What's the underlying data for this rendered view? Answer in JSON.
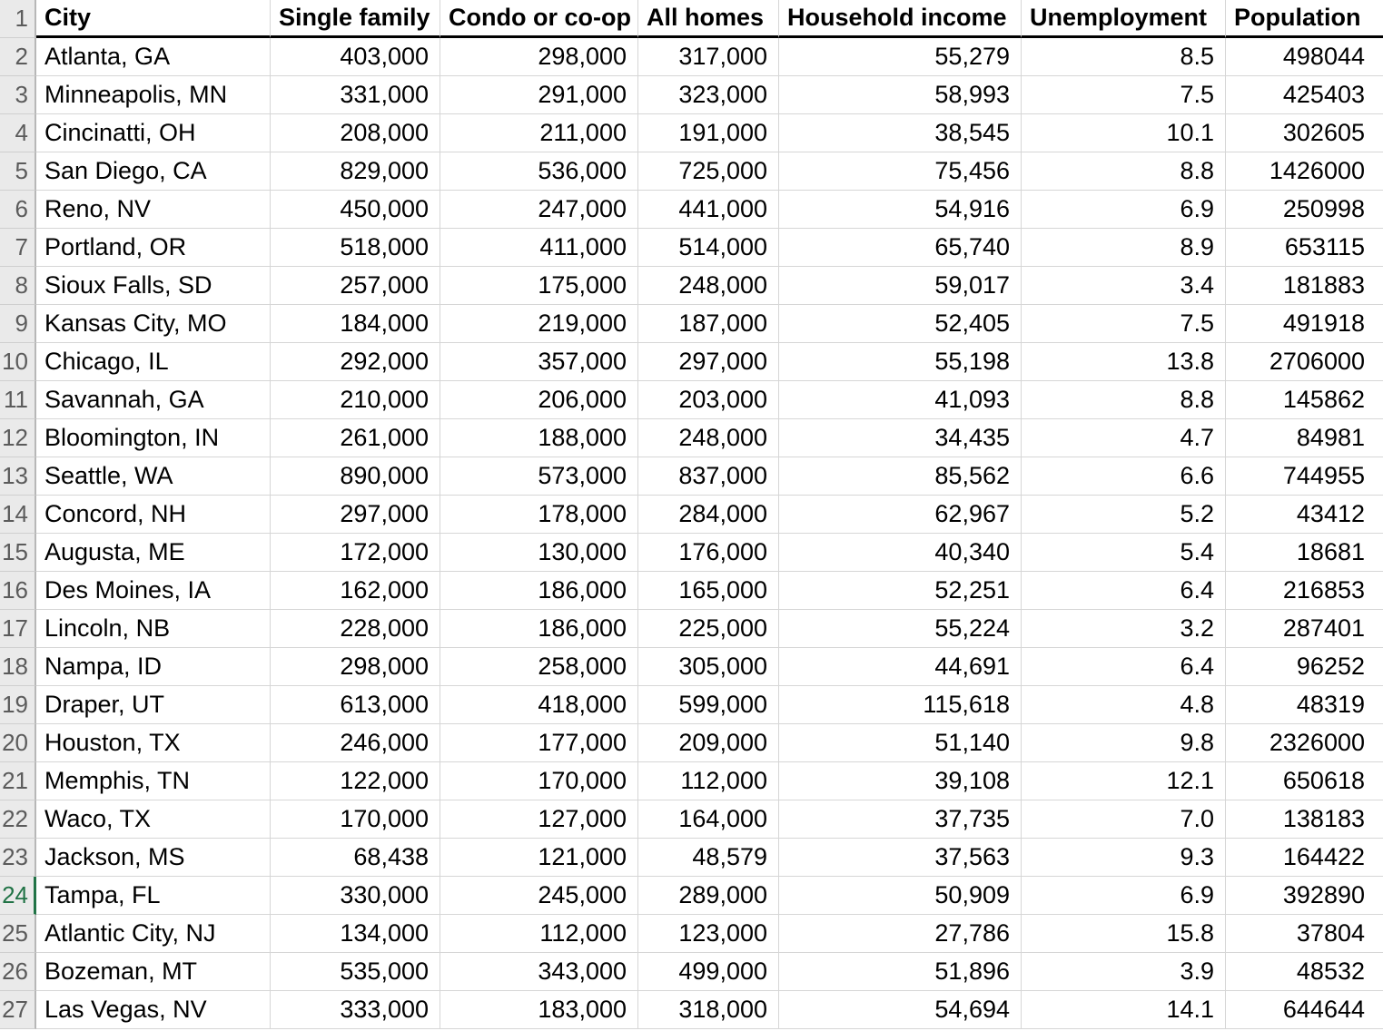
{
  "sheet": {
    "header_row_number": "1",
    "selected_row_number": 24,
    "selection_accent_color": "#217346",
    "columns": [
      {
        "key": "city",
        "label": "City",
        "align": "left"
      },
      {
        "key": "single_family",
        "label": "Single family",
        "align": "right"
      },
      {
        "key": "condo_or_coop",
        "label": "Condo or co-op",
        "align": "right"
      },
      {
        "key": "all_homes",
        "label": "All homes",
        "align": "right"
      },
      {
        "key": "household_income",
        "label": "Household income",
        "align": "right"
      },
      {
        "key": "unemployment",
        "label": "Unemployment",
        "align": "right"
      },
      {
        "key": "population",
        "label": "Population",
        "align": "right"
      }
    ],
    "rows": [
      {
        "n": 2,
        "cells": [
          "Atlanta, GA",
          "403,000",
          "298,000",
          "317,000",
          "55,279",
          "8.5",
          "498044"
        ]
      },
      {
        "n": 3,
        "cells": [
          "Minneapolis, MN",
          "331,000",
          "291,000",
          "323,000",
          "58,993",
          "7.5",
          "425403"
        ]
      },
      {
        "n": 4,
        "cells": [
          "Cincinatti, OH",
          "208,000",
          "211,000",
          "191,000",
          "38,545",
          "10.1",
          "302605"
        ]
      },
      {
        "n": 5,
        "cells": [
          "San Diego, CA",
          "829,000",
          "536,000",
          "725,000",
          "75,456",
          "8.8",
          "1426000"
        ]
      },
      {
        "n": 6,
        "cells": [
          "Reno, NV",
          "450,000",
          "247,000",
          "441,000",
          "54,916",
          "6.9",
          "250998"
        ]
      },
      {
        "n": 7,
        "cells": [
          "Portland, OR",
          "518,000",
          "411,000",
          "514,000",
          "65,740",
          "8.9",
          "653115"
        ]
      },
      {
        "n": 8,
        "cells": [
          "Sioux Falls, SD",
          "257,000",
          "175,000",
          "248,000",
          "59,017",
          "3.4",
          "181883"
        ]
      },
      {
        "n": 9,
        "cells": [
          "Kansas City, MO",
          "184,000",
          "219,000",
          "187,000",
          "52,405",
          "7.5",
          "491918"
        ]
      },
      {
        "n": 10,
        "cells": [
          "Chicago, IL",
          "292,000",
          "357,000",
          "297,000",
          "55,198",
          "13.8",
          "2706000"
        ]
      },
      {
        "n": 11,
        "cells": [
          "Savannah, GA",
          "210,000",
          "206,000",
          "203,000",
          "41,093",
          "8.8",
          "145862"
        ]
      },
      {
        "n": 12,
        "cells": [
          "Bloomington, IN",
          "261,000",
          "188,000",
          "248,000",
          "34,435",
          "4.7",
          "84981"
        ]
      },
      {
        "n": 13,
        "cells": [
          "Seattle, WA",
          "890,000",
          "573,000",
          "837,000",
          "85,562",
          "6.6",
          "744955"
        ]
      },
      {
        "n": 14,
        "cells": [
          "Concord, NH",
          "297,000",
          "178,000",
          "284,000",
          "62,967",
          "5.2",
          "43412"
        ]
      },
      {
        "n": 15,
        "cells": [
          "Augusta, ME",
          "172,000",
          "130,000",
          "176,000",
          "40,340",
          "5.4",
          "18681"
        ]
      },
      {
        "n": 16,
        "cells": [
          "Des Moines, IA",
          "162,000",
          "186,000",
          "165,000",
          "52,251",
          "6.4",
          "216853"
        ]
      },
      {
        "n": 17,
        "cells": [
          "Lincoln, NB",
          "228,000",
          "186,000",
          "225,000",
          "55,224",
          "3.2",
          "287401"
        ]
      },
      {
        "n": 18,
        "cells": [
          "Nampa, ID",
          "298,000",
          "258,000",
          "305,000",
          "44,691",
          "6.4",
          "96252"
        ]
      },
      {
        "n": 19,
        "cells": [
          "Draper, UT",
          "613,000",
          "418,000",
          "599,000",
          "115,618",
          "4.8",
          "48319"
        ]
      },
      {
        "n": 20,
        "cells": [
          "Houston, TX",
          "246,000",
          "177,000",
          "209,000",
          "51,140",
          "9.8",
          "2326000"
        ]
      },
      {
        "n": 21,
        "cells": [
          "Memphis, TN",
          "122,000",
          "170,000",
          "112,000",
          "39,108",
          "12.1",
          "650618"
        ]
      },
      {
        "n": 22,
        "cells": [
          "Waco, TX",
          "170,000",
          "127,000",
          "164,000",
          "37,735",
          "7.0",
          "138183"
        ]
      },
      {
        "n": 23,
        "cells": [
          "Jackson, MS",
          "68,438",
          "121,000",
          "48,579",
          "37,563",
          "9.3",
          "164422"
        ]
      },
      {
        "n": 24,
        "cells": [
          "Tampa, FL",
          "330,000",
          "245,000",
          "289,000",
          "50,909",
          "6.9",
          "392890"
        ]
      },
      {
        "n": 25,
        "cells": [
          "Atlantic City, NJ",
          "134,000",
          "112,000",
          "123,000",
          "27,786",
          "15.8",
          "37804"
        ]
      },
      {
        "n": 26,
        "cells": [
          "Bozeman, MT",
          "535,000",
          "343,000",
          "499,000",
          "51,896",
          "3.9",
          "48532"
        ]
      },
      {
        "n": 27,
        "cells": [
          "Las Vegas, NV",
          "333,000",
          "183,000",
          "318,000",
          "54,694",
          "14.1",
          "644644"
        ]
      }
    ]
  }
}
